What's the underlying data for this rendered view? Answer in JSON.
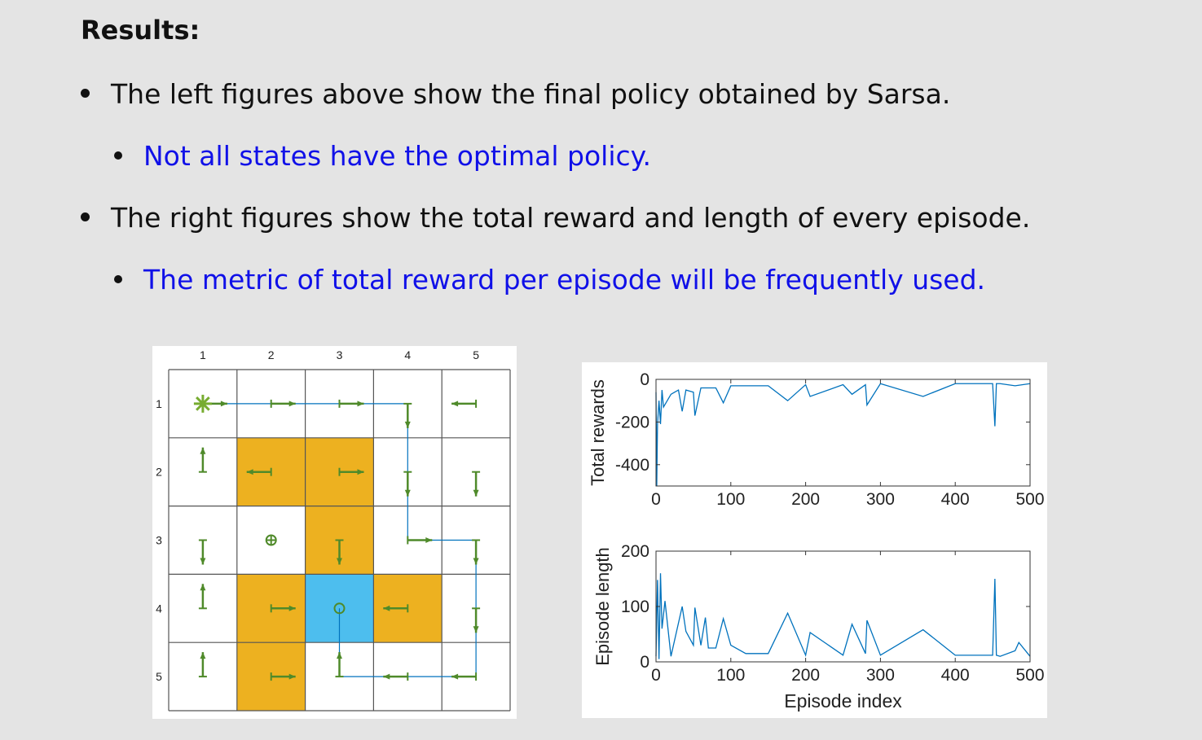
{
  "heading": "Results:",
  "bullets": [
    {
      "level": 1,
      "text": "The left figures above show the final policy obtained by Sarsa."
    },
    {
      "level": 2,
      "text": "Not all states have the optimal policy."
    },
    {
      "level": 1,
      "text": "The right figures show the total reward and length of every episode."
    },
    {
      "level": 2,
      "text": "The metric of total reward per episode will be frequently used."
    }
  ],
  "colors": {
    "text": "#111111",
    "highlight": "#1010e8",
    "forbidden": "#EDB120",
    "target": "#4DBEEE",
    "arrow": "#4f8a2a",
    "line": "#0072BD"
  },
  "gridworld": {
    "col_labels": [
      "1",
      "2",
      "3",
      "4",
      "5"
    ],
    "row_labels": [
      "1",
      "2",
      "3",
      "4",
      "5"
    ],
    "forbidden_cells": [
      [
        2,
        2
      ],
      [
        2,
        3
      ],
      [
        3,
        3
      ],
      [
        4,
        2
      ],
      [
        4,
        4
      ],
      [
        5,
        2
      ]
    ],
    "target_cell": [
      4,
      3
    ],
    "start_cell": [
      1,
      1
    ],
    "policy": [
      [
        "right",
        "right",
        "right",
        "down",
        "left"
      ],
      [
        "up",
        "left",
        "right",
        "down",
        "down"
      ],
      [
        "down",
        "stay",
        "down",
        "right",
        "down"
      ],
      [
        "up",
        "right",
        "stay",
        "left",
        "down"
      ],
      [
        "up",
        "right",
        "up",
        "left",
        "left"
      ]
    ],
    "trajectory": [
      [
        1,
        1
      ],
      [
        1,
        4
      ],
      [
        3,
        4
      ],
      [
        3,
        5
      ],
      [
        5,
        5
      ],
      [
        5,
        3
      ],
      [
        4,
        3
      ]
    ]
  },
  "chart_data": [
    {
      "type": "line",
      "title": "",
      "xlabel": "",
      "ylabel": "Total rewards",
      "xlim": [
        0,
        500
      ],
      "ylim": [
        -500,
        0
      ],
      "xticks": [
        "0",
        "100",
        "200",
        "300",
        "400",
        "500"
      ],
      "yticks": [
        "0",
        "-200",
        "-400"
      ],
      "series": [
        {
          "name": "Total rewards",
          "x": [
            0,
            1,
            2,
            4,
            6,
            8,
            10,
            15,
            20,
            25,
            30,
            35,
            40,
            50,
            52,
            60,
            70,
            80,
            90,
            100,
            120,
            150,
            176,
            200,
            206,
            250,
            262,
            280,
            282,
            300,
            357,
            400,
            450,
            453,
            455,
            460,
            480,
            500
          ],
          "values": [
            -60,
            -500,
            -210,
            -100,
            -210,
            -50,
            -130,
            -100,
            -70,
            -60,
            -50,
            -150,
            -50,
            -60,
            -170,
            -40,
            -40,
            -40,
            -110,
            -30,
            -30,
            -30,
            -100,
            -25,
            -80,
            -25,
            -70,
            -25,
            -120,
            -20,
            -80,
            -20,
            -20,
            -220,
            -20,
            -20,
            -30,
            -20
          ]
        }
      ],
      "grid": false
    },
    {
      "type": "line",
      "title": "",
      "xlabel": "Episode index",
      "ylabel": "Episode length",
      "xlim": [
        0,
        500
      ],
      "ylim": [
        0,
        200
      ],
      "xticks": [
        "0",
        "100",
        "200",
        "300",
        "400",
        "500"
      ],
      "yticks": [
        "0",
        "100",
        "200"
      ],
      "series": [
        {
          "name": "Episode length",
          "x": [
            0,
            2,
            4,
            6,
            8,
            12,
            20,
            30,
            35,
            40,
            50,
            52,
            60,
            66,
            70,
            80,
            90,
            100,
            120,
            150,
            176,
            200,
            206,
            250,
            262,
            280,
            282,
            300,
            357,
            400,
            450,
            453,
            455,
            460,
            480,
            485,
            500
          ],
          "values": [
            10,
            148,
            5,
            160,
            60,
            110,
            10,
            70,
            100,
            55,
            30,
            98,
            30,
            80,
            25,
            25,
            78,
            30,
            15,
            15,
            88,
            12,
            53,
            12,
            68,
            15,
            75,
            12,
            58,
            12,
            12,
            150,
            12,
            10,
            20,
            35,
            10
          ]
        }
      ],
      "grid": false
    }
  ]
}
